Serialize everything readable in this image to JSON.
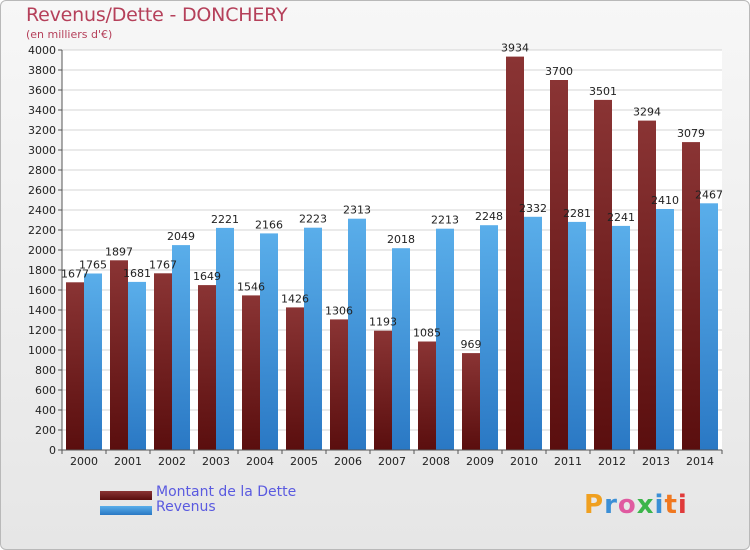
{
  "title": "Revenus/Dette - DONCHERY",
  "subtitle": "(en milliers d'€)",
  "logo": {
    "text": "Proxiti",
    "colors": [
      "#f0a020",
      "#3b8fd6",
      "#e05aa0",
      "#3bb54a",
      "#3b8fd6",
      "#f07820",
      "#e03a3a"
    ]
  },
  "colors": {
    "dette": "#7e2a2a",
    "revenus": "#4a9ee0",
    "title": "#b5405a",
    "legend_text": "#5a5ae0"
  },
  "chart_data": {
    "type": "bar",
    "categories": [
      "2000",
      "2001",
      "2002",
      "2003",
      "2004",
      "2005",
      "2006",
      "2007",
      "2008",
      "2009",
      "2010",
      "2011",
      "2012",
      "2013",
      "2014"
    ],
    "series": [
      {
        "name": "Montant de la Dette",
        "values": [
          1677,
          1897,
          1767,
          1649,
          1546,
          1426,
          1306,
          1193,
          1085,
          969,
          3934,
          3700,
          3501,
          3294,
          3079
        ],
        "labels": [
          "1677",
          "1897",
          "1767",
          "1649",
          "1546",
          "1426",
          "1306",
          "1193",
          "1085",
          "969",
          "3934",
          "3700",
          "3501",
          "3294",
          "3079"
        ]
      },
      {
        "name": "Revenus",
        "values": [
          1765,
          1681,
          2049,
          2221,
          2166,
          2223,
          2313,
          2018,
          2213,
          2248,
          2332,
          2281,
          2241,
          2410,
          2467
        ],
        "labels": [
          "1765",
          "1681",
          "2049",
          "2221",
          "2166",
          "2223",
          "2313",
          "2018",
          "2213",
          "2248",
          "2332",
          "2281",
          "2241",
          "2410",
          "2467"
        ]
      }
    ],
    "ylim": [
      0,
      4000
    ],
    "yticks": [
      0,
      200,
      400,
      600,
      800,
      1000,
      1200,
      1400,
      1600,
      1800,
      2000,
      2200,
      2400,
      2600,
      2800,
      3000,
      3200,
      3400,
      3600,
      3800,
      4000
    ],
    "grid": true,
    "legend_position": "bottom-left"
  }
}
